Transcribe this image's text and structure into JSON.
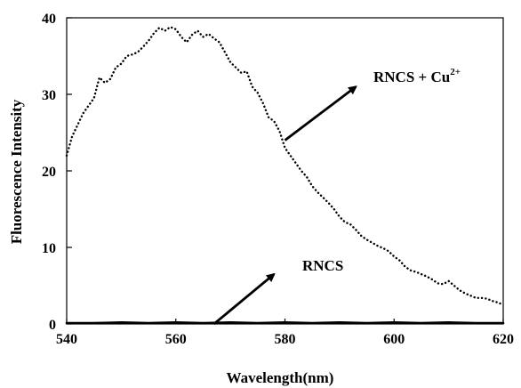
{
  "chart_data": {
    "type": "line",
    "xlabel": "Wavelength(nm)",
    "ylabel": "Fluorescence Intensity",
    "xlim": [
      540,
      620
    ],
    "ylim": [
      0,
      40
    ],
    "x_ticks": [
      540,
      560,
      580,
      600,
      620
    ],
    "y_ticks": [
      0,
      10,
      20,
      30,
      40
    ],
    "grid": false,
    "series": [
      {
        "name": "RNCS + Cu2+",
        "style": "dotted",
        "color": "#000000",
        "points": [
          [
            540,
            22
          ],
          [
            541,
            24.5
          ],
          [
            542,
            26
          ],
          [
            543,
            27.5
          ],
          [
            544,
            28.5
          ],
          [
            545,
            29.5
          ],
          [
            546,
            32.2
          ],
          [
            547,
            31.5
          ],
          [
            548,
            32.0
          ],
          [
            549,
            33.5
          ],
          [
            550,
            34.0
          ],
          [
            551,
            35.0
          ],
          [
            552,
            35.2
          ],
          [
            553,
            35.5
          ],
          [
            554,
            36.2
          ],
          [
            555,
            37.0
          ],
          [
            556,
            38.0
          ],
          [
            557,
            38.7
          ],
          [
            558,
            38.3
          ],
          [
            559,
            38.8
          ],
          [
            560,
            38.5
          ],
          [
            561,
            37.5
          ],
          [
            562,
            36.8
          ],
          [
            563,
            37.8
          ],
          [
            564,
            38.3
          ],
          [
            565,
            37.5
          ],
          [
            566,
            37.9
          ],
          [
            567,
            37.3
          ],
          [
            568,
            36.8
          ],
          [
            569,
            35.5
          ],
          [
            570,
            34.2
          ],
          [
            571,
            33.5
          ],
          [
            572,
            32.8
          ],
          [
            573,
            33.0
          ],
          [
            574,
            31.0
          ],
          [
            575,
            30.2
          ],
          [
            576,
            28.8
          ],
          [
            577,
            27.0
          ],
          [
            578,
            26.5
          ],
          [
            579,
            25.2
          ],
          [
            580,
            23.0
          ],
          [
            581,
            22.0
          ],
          [
            582,
            21.0
          ],
          [
            583,
            20.0
          ],
          [
            584,
            19.2
          ],
          [
            585,
            18.0
          ],
          [
            586,
            17.2
          ],
          [
            587,
            16.5
          ],
          [
            588,
            15.8
          ],
          [
            589,
            15.0
          ],
          [
            590,
            14.0
          ],
          [
            591,
            13.3
          ],
          [
            592,
            13.0
          ],
          [
            593,
            12.3
          ],
          [
            594,
            11.5
          ],
          [
            595,
            11.0
          ],
          [
            596,
            10.6
          ],
          [
            597,
            10.2
          ],
          [
            598,
            9.9
          ],
          [
            599,
            9.5
          ],
          [
            600,
            8.8
          ],
          [
            601,
            8.3
          ],
          [
            602,
            7.5
          ],
          [
            603,
            7.0
          ],
          [
            604,
            6.8
          ],
          [
            605,
            6.5
          ],
          [
            606,
            6.2
          ],
          [
            607,
            5.8
          ],
          [
            608,
            5.3
          ],
          [
            609,
            5.2
          ],
          [
            610,
            5.6
          ],
          [
            611,
            5.0
          ],
          [
            612,
            4.4
          ],
          [
            613,
            4.0
          ],
          [
            614,
            3.7
          ],
          [
            615,
            3.4
          ],
          [
            616,
            3.4
          ],
          [
            617,
            3.3
          ],
          [
            618,
            3.0
          ],
          [
            619,
            2.8
          ],
          [
            620,
            2.5
          ]
        ]
      },
      {
        "name": "RNCS",
        "style": "solid",
        "color": "#000000",
        "points": [
          [
            540,
            0.1
          ],
          [
            545,
            0.1
          ],
          [
            550,
            0.2
          ],
          [
            555,
            0.1
          ],
          [
            560,
            0.2
          ],
          [
            565,
            0.1
          ],
          [
            570,
            0.2
          ],
          [
            575,
            0.1
          ],
          [
            580,
            0.2
          ],
          [
            585,
            0.1
          ],
          [
            590,
            0.2
          ],
          [
            595,
            0.1
          ],
          [
            600,
            0.2
          ],
          [
            605,
            0.1
          ],
          [
            610,
            0.2
          ],
          [
            615,
            0.1
          ],
          [
            620,
            0.1
          ]
        ]
      }
    ],
    "annotations": [
      {
        "text": "RNCS + Cu",
        "superscript": "2+",
        "arrow_from": [
          580,
          24
        ],
        "arrow_to": [
          593,
          31
        ]
      },
      {
        "text": "RNCS",
        "arrow_from": [
          567,
          0
        ],
        "arrow_to": [
          578,
          6.5
        ]
      }
    ]
  }
}
